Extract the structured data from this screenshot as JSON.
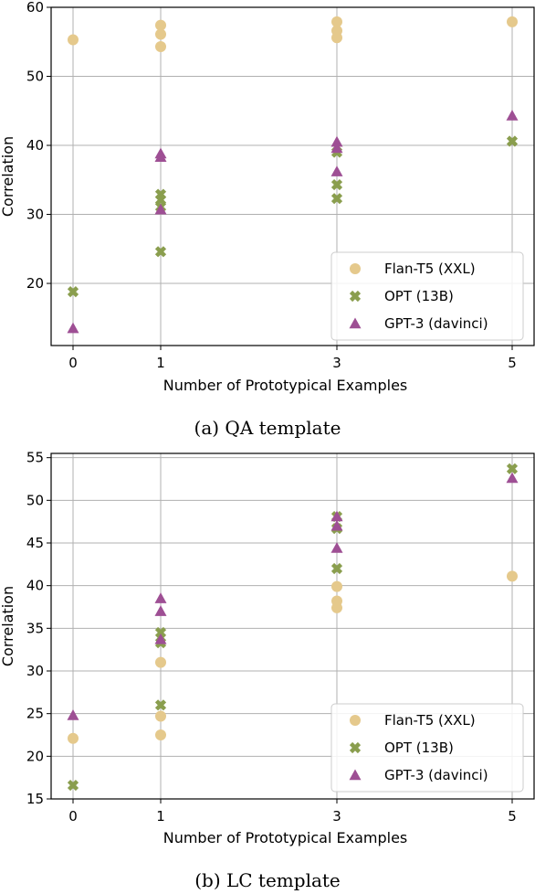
{
  "colors": {
    "flan": "#E5C98C",
    "opt": "#8A9E4E",
    "gpt": "#9E4F94",
    "grid": "#b0b0b0"
  },
  "chart_data": [
    {
      "type": "scatter",
      "caption": "(a) QA template",
      "xlabel": "Number of Prototypical Examples",
      "ylabel": "Correlation",
      "x_ticks": [
        0,
        1,
        3,
        5
      ],
      "y_ticks": [
        20,
        30,
        40,
        50,
        60
      ],
      "ylim": [
        11,
        60
      ],
      "grid": true,
      "legend_position": "bottom-right",
      "series": [
        {
          "name": "Flan-T5 (XXL)",
          "marker": "circle",
          "color": "#E5C98C",
          "points": [
            [
              0,
              55.3
            ],
            [
              1,
              57.4
            ],
            [
              1,
              56.1
            ],
            [
              1,
              54.3
            ],
            [
              3,
              57.9
            ],
            [
              3,
              56.6
            ],
            [
              3,
              55.6
            ],
            [
              5,
              57.9
            ]
          ]
        },
        {
          "name": "OPT (13B)",
          "marker": "x",
          "color": "#8A9E4E",
          "points": [
            [
              0,
              18.8
            ],
            [
              1,
              32.9
            ],
            [
              1,
              32.1
            ],
            [
              1,
              31.1
            ],
            [
              1,
              24.6
            ],
            [
              3,
              39.0
            ],
            [
              3,
              34.3
            ],
            [
              3,
              32.3
            ],
            [
              5,
              40.6
            ]
          ]
        },
        {
          "name": "GPT-3 (davinci)",
          "marker": "triangle",
          "color": "#9E4F94",
          "points": [
            [
              0,
              13.5
            ],
            [
              1,
              38.8
            ],
            [
              1,
              38.3
            ],
            [
              1,
              30.7
            ],
            [
              3,
              40.5
            ],
            [
              3,
              39.6
            ],
            [
              3,
              36.2
            ],
            [
              5,
              44.3
            ]
          ]
        }
      ]
    },
    {
      "type": "scatter",
      "caption": "(b) LC template",
      "xlabel": "Number of Prototypical Examples",
      "ylabel": "Correlation",
      "x_ticks": [
        0,
        1,
        3,
        5
      ],
      "y_ticks": [
        15,
        20,
        25,
        30,
        35,
        40,
        45,
        50,
        55
      ],
      "ylim": [
        15,
        55.5
      ],
      "grid": true,
      "legend_position": "bottom-right",
      "series": [
        {
          "name": "Flan-T5 (XXL)",
          "marker": "circle",
          "color": "#E5C98C",
          "points": [
            [
              0,
              22.1
            ],
            [
              1,
              31.0
            ],
            [
              1,
              24.7
            ],
            [
              1,
              22.5
            ],
            [
              3,
              39.9
            ],
            [
              3,
              38.2
            ],
            [
              3,
              37.4
            ],
            [
              5,
              41.1
            ]
          ]
        },
        {
          "name": "OPT (13B)",
          "marker": "x",
          "color": "#8A9E4E",
          "points": [
            [
              0,
              16.6
            ],
            [
              1,
              34.5
            ],
            [
              1,
              33.3
            ],
            [
              1,
              26.0
            ],
            [
              3,
              48.1
            ],
            [
              3,
              46.7
            ],
            [
              3,
              42.0
            ],
            [
              5,
              53.7
            ]
          ]
        },
        {
          "name": "GPT-3 (davinci)",
          "marker": "triangle",
          "color": "#9E4F94",
          "points": [
            [
              0,
              24.8
            ],
            [
              1,
              38.5
            ],
            [
              1,
              37.0
            ],
            [
              1,
              33.7
            ],
            [
              3,
              48.1
            ],
            [
              3,
              47.0
            ],
            [
              3,
              44.4
            ],
            [
              5,
              52.6
            ]
          ]
        }
      ]
    }
  ]
}
